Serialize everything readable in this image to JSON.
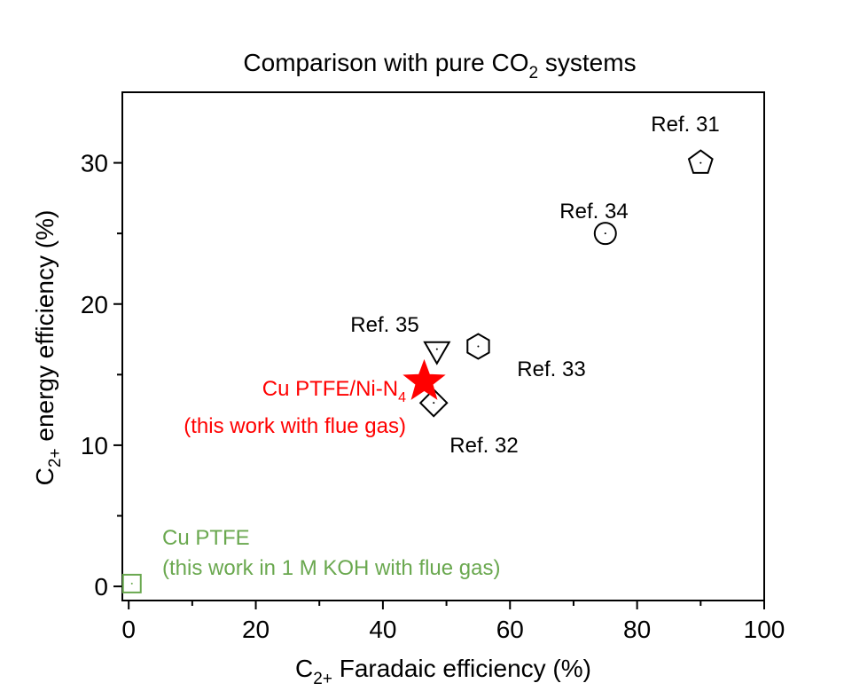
{
  "chart_data": {
    "type": "scatter",
    "title": {
      "main": "Comparison with pure CO",
      "sub": "2",
      "tail": " systems"
    },
    "xlabel": {
      "pre": "C",
      "sub": "2+",
      "post": " Faradaic efficiency (%)"
    },
    "ylabel": {
      "pre": "C",
      "sub": "2+",
      "post": " energy efficiency (%)"
    },
    "xlim": [
      -1,
      100
    ],
    "ylim": [
      -1,
      35
    ],
    "xticks": [
      0,
      20,
      40,
      60,
      80,
      100
    ],
    "yticks": [
      0,
      10,
      20,
      30
    ],
    "xtick_labels": [
      "0",
      "20",
      "40",
      "60",
      "80",
      "100"
    ],
    "ytick_labels": [
      "0",
      "10",
      "20",
      "30"
    ],
    "grid": false,
    "points": [
      {
        "label": "Ref. 31",
        "x": 90,
        "y": 30,
        "marker": "pentagon",
        "color": "#000000"
      },
      {
        "label": "Ref. 34",
        "x": 75,
        "y": 25,
        "marker": "circle",
        "color": "#000000"
      },
      {
        "label": "Ref. 33",
        "x": 55,
        "y": 17,
        "marker": "hexagon",
        "color": "#000000"
      },
      {
        "label": "Ref. 35",
        "x": 48.5,
        "y": 16.8,
        "marker": "triangle-down",
        "color": "#000000"
      },
      {
        "label": "Ref. 32",
        "x": 48,
        "y": 13,
        "marker": "diamond",
        "color": "#000000"
      },
      {
        "label": "Cu PTFE/Ni-N",
        "label_sub": "4",
        "label2": "(this work with flue gas)",
        "x": 46.5,
        "y": 14.5,
        "marker": "star",
        "color": "#ff0000"
      },
      {
        "label": "Cu PTFE",
        "label2": "(this work in 1 M KOH with flue gas)",
        "x": 0.5,
        "y": 0.2,
        "marker": "square",
        "color": "#6aa84f"
      }
    ]
  }
}
